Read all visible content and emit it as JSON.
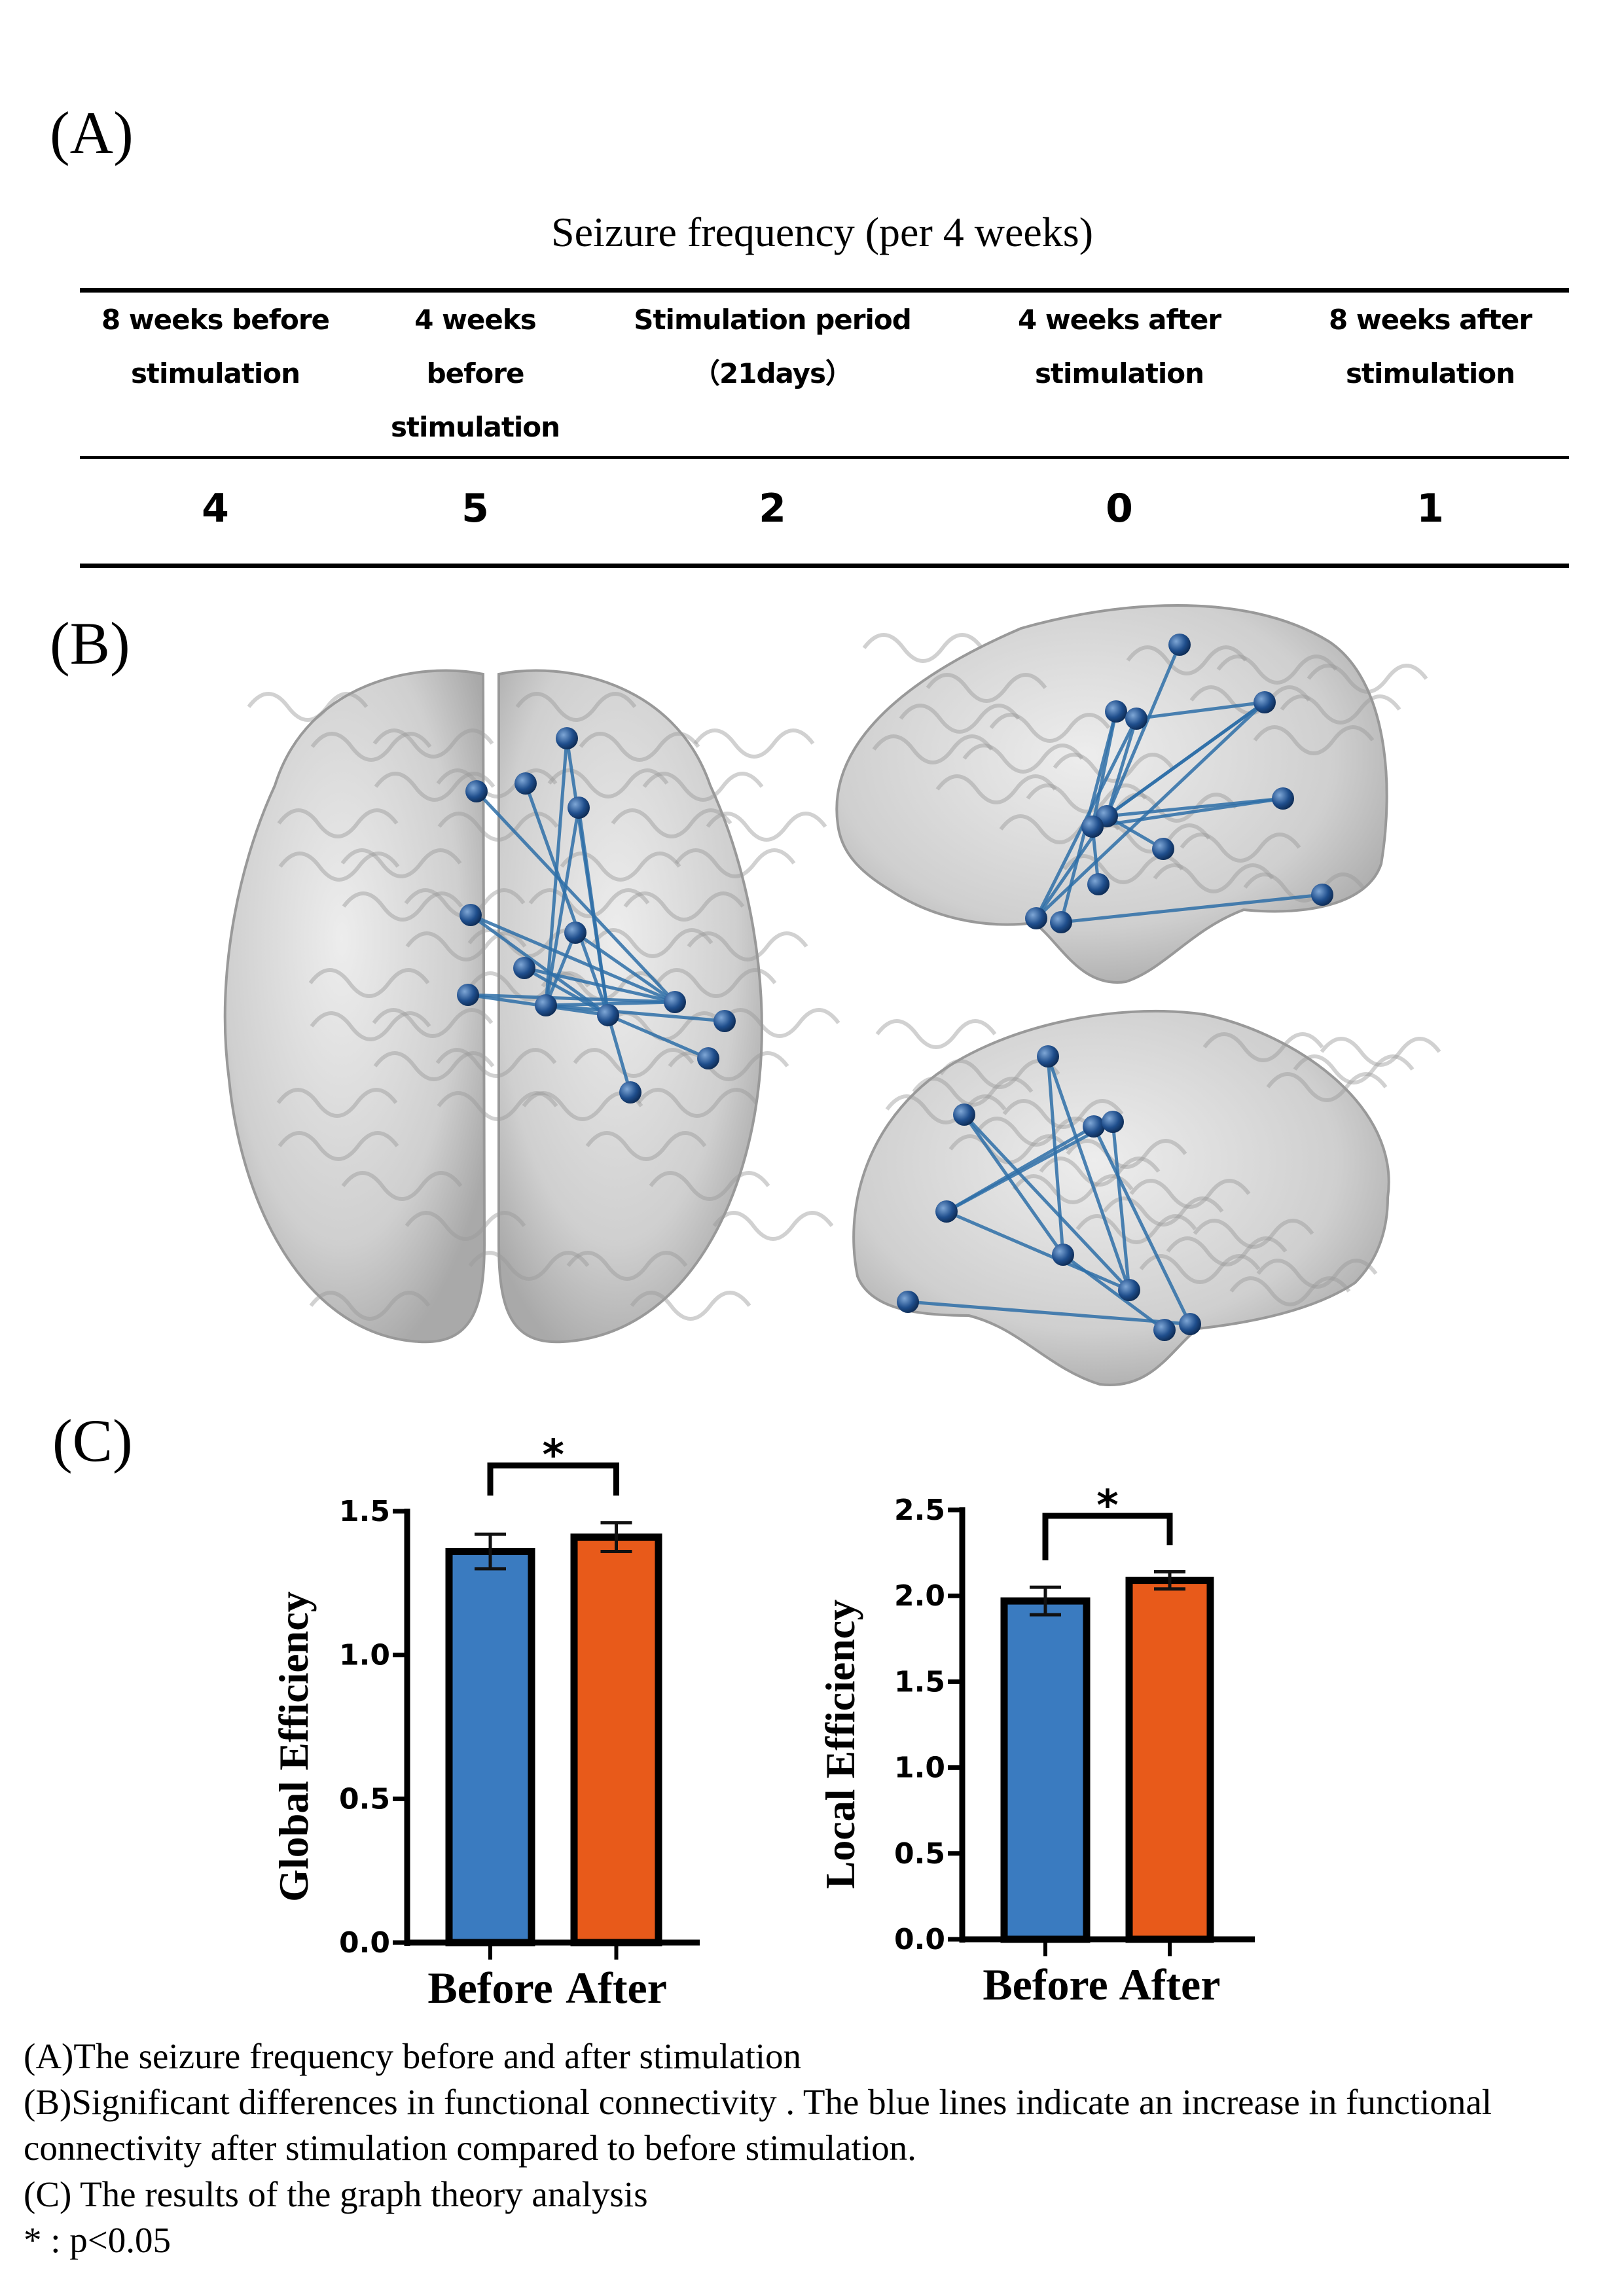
{
  "panels": {
    "a": "(A)",
    "b": "(B)",
    "c": "(C)"
  },
  "table": {
    "title": "Seizure frequency (per 4 weeks)",
    "columns": [
      {
        "lines": [
          "8 weeks before",
          "stimulation"
        ],
        "value": "4"
      },
      {
        "lines": [
          "4 weeks",
          "before",
          "stimulation"
        ],
        "value": "5"
      },
      {
        "lines": [
          "Stimulation period",
          "（21days）"
        ],
        "value": "2"
      },
      {
        "lines": [
          "4 weeks after",
          "stimulation"
        ],
        "value": "0"
      },
      {
        "lines": [
          "8 weeks after",
          "stimulation"
        ],
        "value": "1"
      }
    ]
  },
  "colors": {
    "before": "#3A7BC0",
    "after": "#E85A1A",
    "connection": "#2E6FA8",
    "node": "#1F4E8C",
    "brain": "#C9C9C9"
  },
  "chart_data": [
    {
      "type": "bar",
      "ylabel": "Global Efficiency",
      "categories": [
        "Before",
        "After"
      ],
      "values": [
        1.36,
        1.41
      ],
      "errors": [
        0.06,
        0.05
      ],
      "ylim": [
        0,
        1.5
      ],
      "yticks": [
        "0.0",
        "0.5",
        "1.0",
        "1.5"
      ],
      "significance": "*"
    },
    {
      "type": "bar",
      "ylabel": "Local Efficiency",
      "categories": [
        "Before",
        "After"
      ],
      "values": [
        1.97,
        2.09
      ],
      "errors": [
        0.08,
        0.05
      ],
      "ylim": [
        0,
        2.5
      ],
      "yticks": [
        "0.0",
        "0.5",
        "1.0",
        "1.5",
        "2.0",
        "2.5"
      ],
      "significance": "*"
    }
  ],
  "captions": [
    "(A)The seizure frequency before and after stimulation",
    "(B)Significant differences in functional connectivity . The blue lines indicate an increase in functional",
    "connectivity after stimulation compared to before stimulation.",
    "(C) The results of the graph theory analysis",
    "* : p<0.05"
  ]
}
